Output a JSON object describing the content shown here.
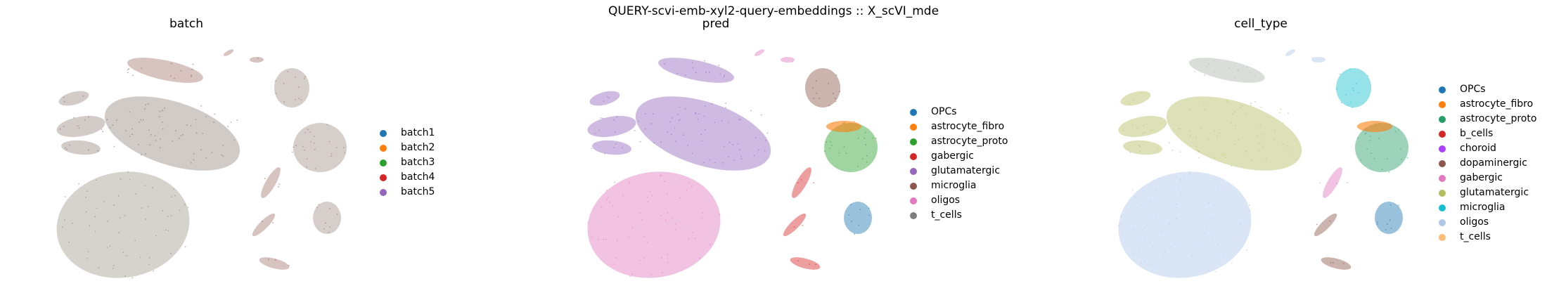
{
  "figure": {
    "title": "QUERY-scvi-emb-xyl2-query-embeddings :: X_scVI_mde"
  },
  "chart_data": [
    {
      "type": "scatter",
      "title": "batch",
      "legend": {
        "placement": "right",
        "entries": [
          "batch1",
          "batch2",
          "batch3",
          "batch4",
          "batch5"
        ]
      },
      "colors": {
        "batch1": "#1f77b4",
        "batch2": "#ff7f0e",
        "batch3": "#2ca02c",
        "batch4": "#d62728",
        "batch5": "#9467bd"
      },
      "grid": false,
      "axes_visible": false
    },
    {
      "type": "scatter",
      "title": "pred",
      "legend": {
        "placement": "right",
        "entries": [
          "OPCs",
          "astrocyte_fibro",
          "astrocyte_proto",
          "gabergic",
          "glutamatergic",
          "microglia",
          "oligos",
          "t_cells"
        ]
      },
      "colors": {
        "OPCs": "#1f77b4",
        "astrocyte_fibro": "#ff7f0e",
        "astrocyte_proto": "#2ca02c",
        "gabergic": "#d62728",
        "glutamatergic": "#9467bd",
        "microglia": "#8c564b",
        "oligos": "#e377c2",
        "t_cells": "#7f7f7f"
      },
      "grid": false,
      "axes_visible": false
    },
    {
      "type": "scatter",
      "title": "cell_type",
      "legend": {
        "placement": "right",
        "entries": [
          "OPCs",
          "astrocyte_fibro",
          "astrocyte_proto",
          "b_cells",
          "choroid",
          "dopaminergic",
          "gabergic",
          "glutamatergic",
          "microglia",
          "oligos",
          "t_cells"
        ]
      },
      "colors": {
        "OPCs": "#1f77b4",
        "astrocyte_fibro": "#ff7f0e",
        "astrocyte_proto": "#279e68",
        "b_cells": "#d62728",
        "choroid": "#aa40fc",
        "dopaminergic": "#8c564b",
        "gabergic": "#e377c2",
        "glutamatergic": "#b5bd61",
        "microglia": "#17becf",
        "oligos": "#aec7e8",
        "t_cells": "#ffbb78"
      },
      "grid": false,
      "axes_visible": false
    }
  ]
}
